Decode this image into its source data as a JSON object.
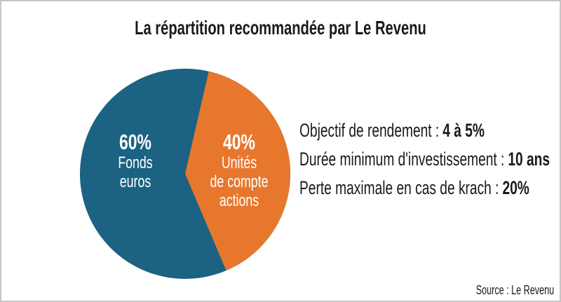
{
  "title": "La répartition recommandée par Le Revenu",
  "chart_data": {
    "type": "pie",
    "title": "La répartition recommandée par Le Revenu",
    "start_angle_deg": 13,
    "label_color": "#ffffff",
    "slices": [
      {
        "label": "Fonds euros",
        "value": 60,
        "display": "60%",
        "color": "#1b6283",
        "label_lines": [
          "Fonds",
          "euros"
        ]
      },
      {
        "label": "Unités de compte actions",
        "value": 40,
        "display": "40%",
        "color": "#e8772e",
        "label_lines": [
          "Unités",
          "de compte",
          "actions"
        ]
      }
    ],
    "source": "Source : Le Revenu"
  },
  "facts": [
    {
      "label": "Objectif de rendement :",
      "value": "4 à 5%"
    },
    {
      "label": "Durée minimum d'investissement :",
      "value": "10 ans"
    },
    {
      "label": "Perte maximale en cas de krach :",
      "value": "20%"
    }
  ],
  "source": "Source : Le Revenu"
}
